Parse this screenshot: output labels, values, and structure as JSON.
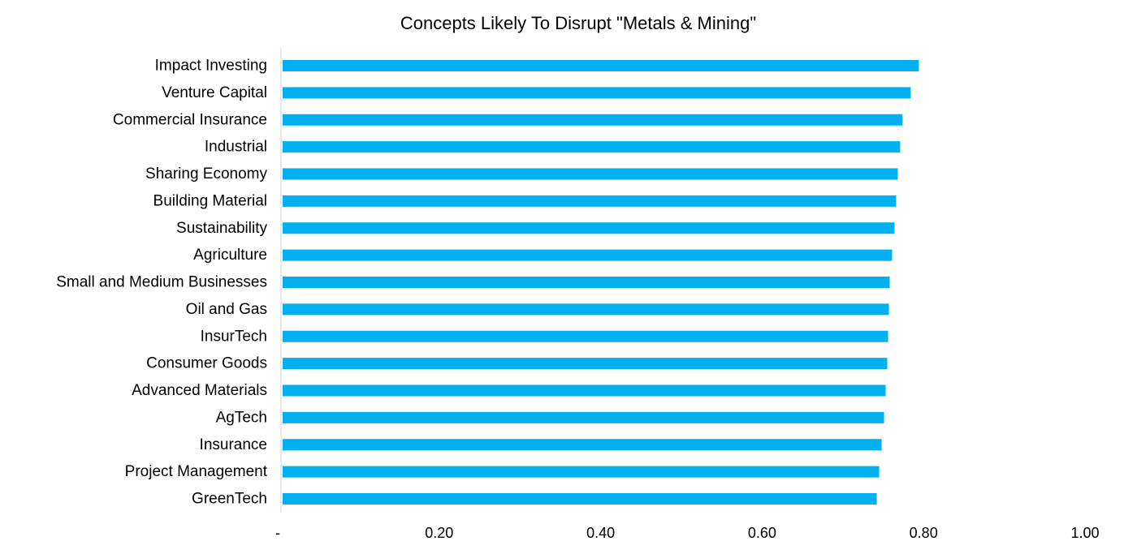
{
  "chart_data": {
    "type": "bar",
    "orientation": "horizontal",
    "title": "Concepts Likely To Disrupt \"Metals & Mining\"",
    "xlabel": "",
    "ylabel": "",
    "xlim": [
      0,
      1.0
    ],
    "x_ticks": [
      0,
      0.2,
      0.4,
      0.6,
      0.8,
      1.0
    ],
    "x_tick_labels": [
      "-",
      "0.20",
      "0.40",
      "0.60",
      "0.80",
      "1.00"
    ],
    "grid": false,
    "legend": "none",
    "bar_color": "#00B0F0",
    "categories": [
      "Impact Investing",
      "Venture Capital",
      "Commercial Insurance",
      "Industrial",
      "Sharing Economy",
      "Building Material",
      "Sustainability",
      "Agriculture",
      "Small and Medium Businesses",
      "Oil and Gas",
      "InsurTech",
      "Consumer Goods",
      "Advanced Materials",
      "AgTech",
      "Insurance",
      "Project Management",
      "GreenTech"
    ],
    "values": [
      0.79,
      0.78,
      0.77,
      0.767,
      0.764,
      0.762,
      0.76,
      0.757,
      0.754,
      0.753,
      0.752,
      0.751,
      0.749,
      0.747,
      0.744,
      0.741,
      0.738
    ]
  }
}
